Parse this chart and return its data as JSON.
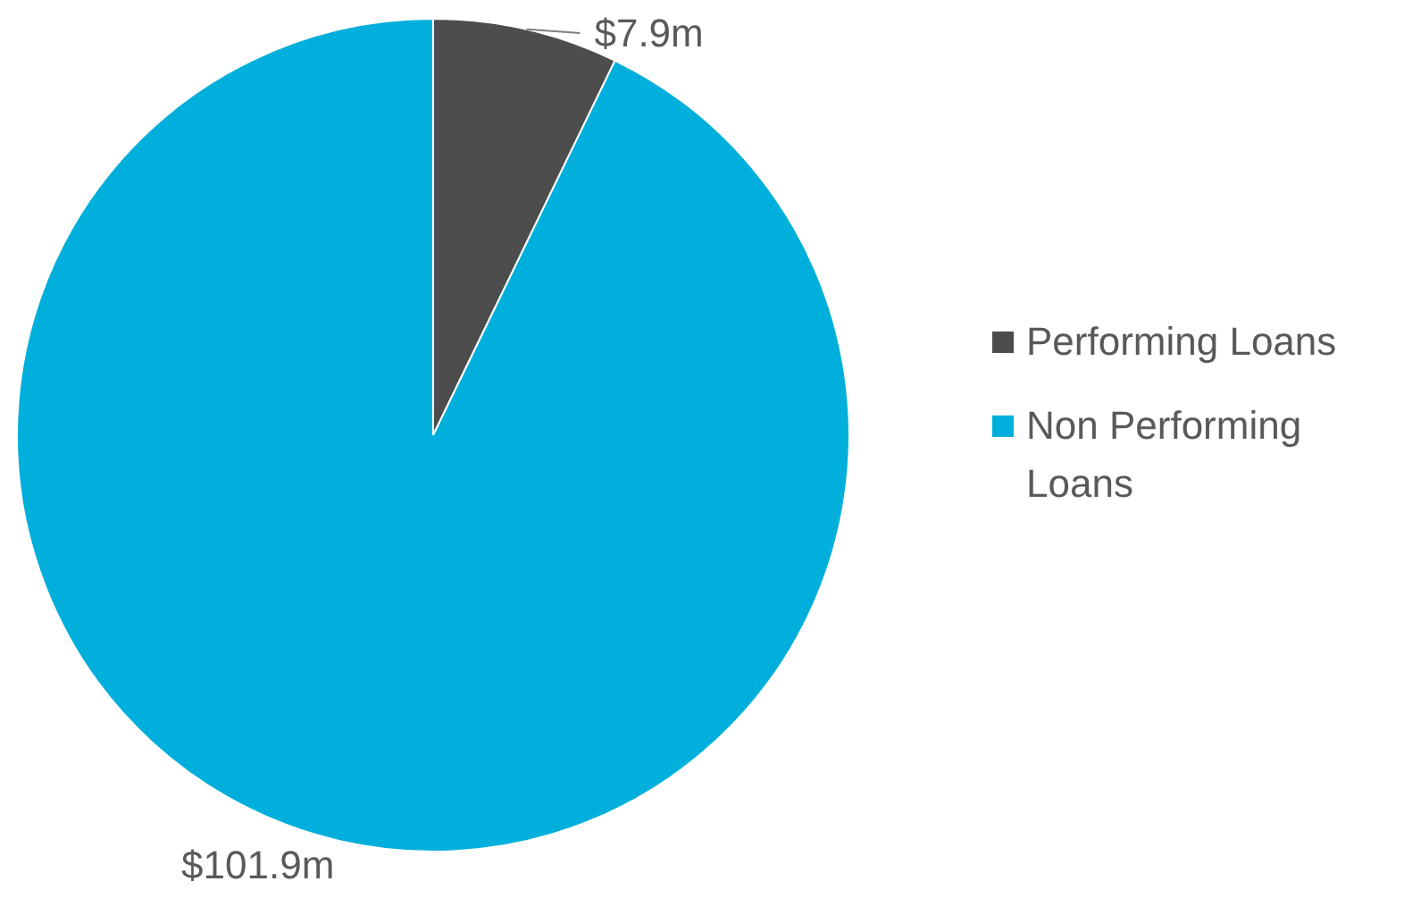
{
  "chart_data": {
    "type": "pie",
    "categories": [
      "Performing Loans",
      "Non Performing Loans"
    ],
    "values": [
      7.9,
      101.9
    ],
    "colors": [
      "#4d4d4d",
      "#00afdb"
    ],
    "value_labels": [
      "$7.9m",
      "$101.9m"
    ],
    "legend": "right"
  }
}
